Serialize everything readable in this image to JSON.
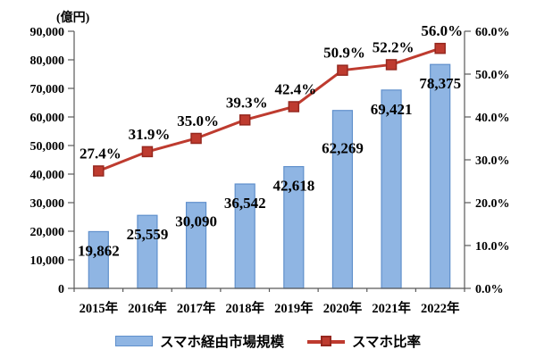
{
  "colors": {
    "bar_fill": "#8FB5E3",
    "bar_stroke": "#6090CC",
    "line": "#BE3B2F",
    "marker_fill": "#BE3B2F",
    "marker_stroke": "#96281F",
    "axis": "#595959",
    "text": "#000000"
  },
  "chart_data": {
    "type": "combo-bar-line",
    "title": "",
    "categories": [
      "2015年",
      "2016年",
      "2017年",
      "2018年",
      "2019年",
      "2020年",
      "2021年",
      "2022年"
    ],
    "series": [
      {
        "name": "スマホ経由市場規模",
        "type": "bar",
        "axis": "left",
        "values": [
          19862,
          25559,
          30090,
          36542,
          42618,
          62269,
          69421,
          78375
        ],
        "labels": [
          "19,862",
          "25,559",
          "30,090",
          "36,542",
          "42,618",
          "62,269",
          "69,421",
          "78,375"
        ]
      },
      {
        "name": "スマホ比率",
        "type": "line",
        "axis": "right",
        "values": [
          27.4,
          31.9,
          35.0,
          39.3,
          42.4,
          50.9,
          52.2,
          56.0
        ],
        "labels": [
          "27.4%",
          "31.9%",
          "35.0%",
          "39.3%",
          "42.4%",
          "50.9%",
          "52.2%",
          "56.0%"
        ]
      }
    ],
    "left_axis": {
      "title": "(億円)",
      "min": 0,
      "max": 90000,
      "step": 10000,
      "tick_labels": [
        "0",
        "10,000",
        "20,000",
        "30,000",
        "40,000",
        "50,000",
        "60,000",
        "70,000",
        "80,000",
        "90,000"
      ]
    },
    "right_axis": {
      "min": 0,
      "max": 60,
      "step": 10,
      "tick_labels": [
        "0.0%",
        "10.0%",
        "20.0%",
        "30.0%",
        "40.0%",
        "50.0%",
        "60.0%"
      ]
    },
    "grid": false,
    "legend_position": "bottom"
  }
}
